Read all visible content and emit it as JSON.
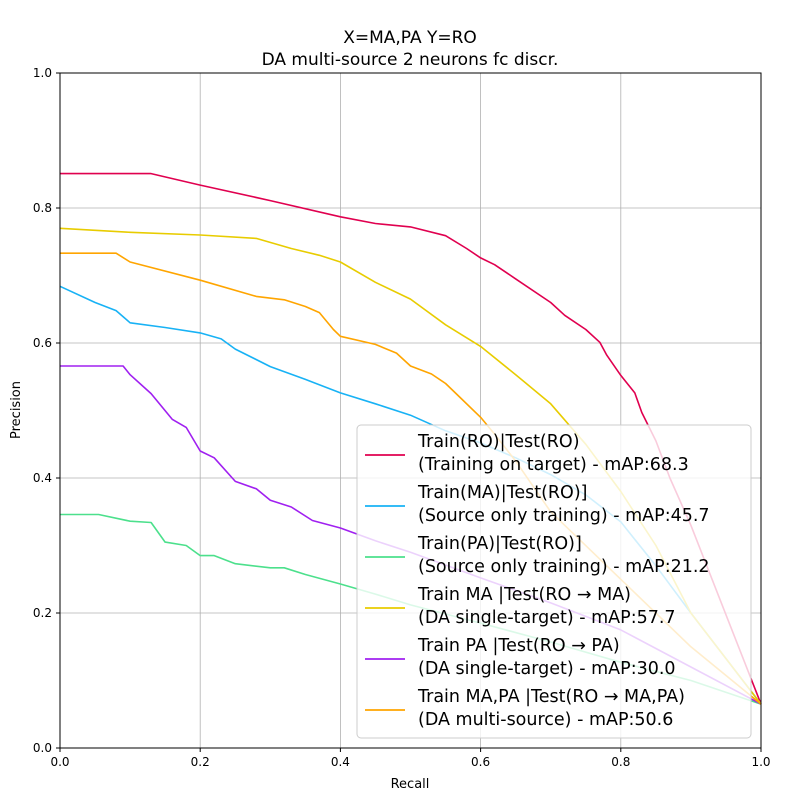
{
  "chart_data": {
    "type": "line",
    "title_line1": "X=MA,PA Y=RO",
    "title_line2": "DA multi-source 2 neurons fc discr.",
    "xlabel": "Recall",
    "ylabel": "Precision",
    "xlim": [
      0,
      1
    ],
    "ylim": [
      0,
      1
    ],
    "xticks": [
      "0.0",
      "0.2",
      "0.4",
      "0.6",
      "0.8",
      "1.0"
    ],
    "yticks": [
      "0.0",
      "0.2",
      "0.4",
      "0.6",
      "0.8",
      "1.0"
    ],
    "grid": true,
    "legend_position": "lower-right",
    "series": [
      {
        "name": "Train(RO)|Test(RO)",
        "name_line2": "(Training on target) - mAP:68.3",
        "color": "#e0004f",
        "x": [
          0.0,
          0.13,
          0.2,
          0.3,
          0.4,
          0.45,
          0.5,
          0.55,
          0.58,
          0.6,
          0.62,
          0.65,
          0.7,
          0.72,
          0.75,
          0.77,
          0.78,
          0.8,
          0.82,
          0.83,
          0.85,
          0.87,
          0.9,
          1.0
        ],
        "y": [
          0.851,
          0.851,
          0.834,
          0.811,
          0.787,
          0.777,
          0.772,
          0.759,
          0.74,
          0.726,
          0.716,
          0.695,
          0.66,
          0.641,
          0.62,
          0.601,
          0.582,
          0.552,
          0.526,
          0.497,
          0.455,
          0.4,
          0.33,
          0.065
        ]
      },
      {
        "name": "Train(MA)|Test(RO)]",
        "name_line2": "(Source only training) - mAP:45.7",
        "color": "#18b2f5",
        "x": [
          0.0,
          0.05,
          0.08,
          0.1,
          0.15,
          0.2,
          0.23,
          0.25,
          0.3,
          0.35,
          0.4,
          0.45,
          0.5,
          0.55,
          0.6,
          0.65,
          0.7,
          0.75,
          0.8,
          0.85,
          0.9,
          1.0
        ],
        "y": [
          0.684,
          0.66,
          0.648,
          0.63,
          0.623,
          0.615,
          0.606,
          0.591,
          0.565,
          0.546,
          0.526,
          0.51,
          0.493,
          0.47,
          0.452,
          0.43,
          0.405,
          0.375,
          0.335,
          0.27,
          0.2,
          0.065
        ]
      },
      {
        "name": "Train(PA)|Test(RO)]",
        "name_line2": "(Source only training) - mAP:21.2",
        "color": "#4ce08c",
        "x": [
          0.0,
          0.055,
          0.1,
          0.13,
          0.15,
          0.18,
          0.2,
          0.22,
          0.25,
          0.3,
          0.32,
          0.35,
          0.4,
          0.45,
          0.5,
          0.6,
          0.7,
          0.8,
          0.9,
          1.0
        ],
        "y": [
          0.346,
          0.346,
          0.336,
          0.334,
          0.305,
          0.3,
          0.285,
          0.285,
          0.273,
          0.267,
          0.267,
          0.257,
          0.243,
          0.228,
          0.212,
          0.185,
          0.157,
          0.127,
          0.1,
          0.065
        ]
      },
      {
        "name": "Train MA |Test(RO → MA)",
        "name_line2": "(DA single-target) - mAP:57.7",
        "color": "#e8cc00",
        "x": [
          0.0,
          0.05,
          0.1,
          0.2,
          0.28,
          0.33,
          0.37,
          0.4,
          0.45,
          0.5,
          0.55,
          0.6,
          0.65,
          0.7,
          0.75,
          0.8,
          0.85,
          0.9,
          1.0
        ],
        "y": [
          0.77,
          0.767,
          0.764,
          0.76,
          0.755,
          0.74,
          0.73,
          0.72,
          0.69,
          0.665,
          0.627,
          0.595,
          0.553,
          0.51,
          0.45,
          0.38,
          0.3,
          0.2,
          0.065
        ]
      },
      {
        "name": "Train PA |Test(RO → PA)",
        "name_line2": "(DA single-target) - mAP:30.0",
        "color": "#a020f0",
        "x": [
          0.0,
          0.09,
          0.1,
          0.13,
          0.16,
          0.18,
          0.2,
          0.22,
          0.25,
          0.28,
          0.3,
          0.33,
          0.36,
          0.4,
          0.45,
          0.5,
          0.6,
          0.7,
          0.8,
          0.9,
          1.0
        ],
        "y": [
          0.566,
          0.566,
          0.553,
          0.525,
          0.487,
          0.475,
          0.44,
          0.43,
          0.395,
          0.384,
          0.367,
          0.357,
          0.337,
          0.326,
          0.307,
          0.29,
          0.252,
          0.215,
          0.175,
          0.12,
          0.065
        ]
      },
      {
        "name": "Train MA,PA |Test(RO → MA,PA)",
        "name_line2": "(DA multi-source) - mAP:50.6",
        "color": "#ffa500",
        "x": [
          0.0,
          0.08,
          0.1,
          0.2,
          0.28,
          0.32,
          0.35,
          0.37,
          0.39,
          0.4,
          0.45,
          0.48,
          0.5,
          0.53,
          0.55,
          0.57,
          0.6,
          0.62,
          0.65,
          0.7,
          0.8,
          0.9,
          1.0
        ],
        "y": [
          0.733,
          0.733,
          0.72,
          0.693,
          0.669,
          0.664,
          0.654,
          0.645,
          0.62,
          0.61,
          0.598,
          0.585,
          0.566,
          0.554,
          0.54,
          0.52,
          0.49,
          0.465,
          0.425,
          0.35,
          0.25,
          0.15,
          0.065
        ]
      }
    ]
  }
}
